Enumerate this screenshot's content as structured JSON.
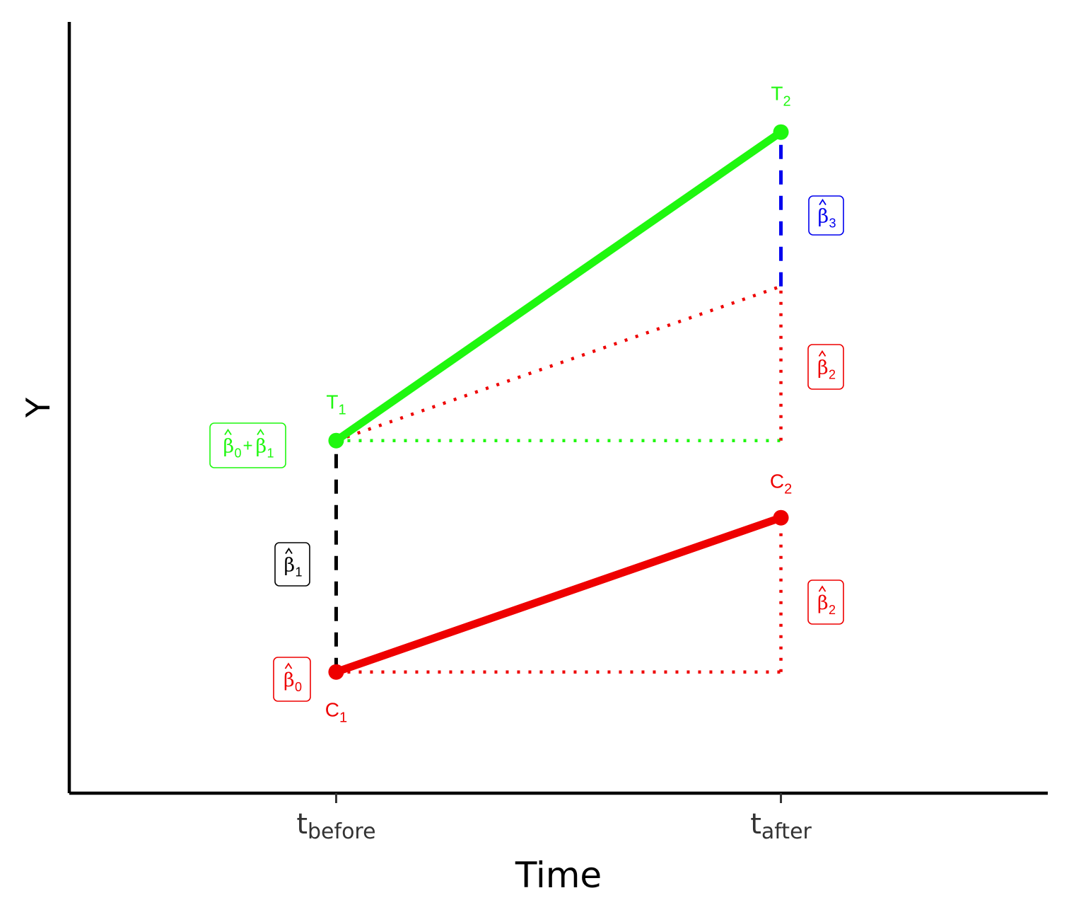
{
  "colors": {
    "treatment": "#1ff70f",
    "control": "#ee0000",
    "beta1": "#000000",
    "beta3": "#0000ee",
    "axis": "#000000"
  },
  "chart_data": {
    "type": "line",
    "xlabel": "Time",
    "ylabel": "Y",
    "x_ticks": [
      {
        "main": "t",
        "sub": "before"
      },
      {
        "main": "t",
        "sub": "after"
      }
    ],
    "x": [
      1,
      2
    ],
    "xlim": [
      0.4,
      2.6
    ],
    "ylim": [
      0.5,
      4.0
    ],
    "grid": false,
    "series": [
      {
        "key": "treatment",
        "values": [
          2.1,
          3.5
        ],
        "labels": [
          {
            "main": "T",
            "sub": "1"
          },
          {
            "main": "T",
            "sub": "2"
          }
        ]
      },
      {
        "key": "control",
        "values": [
          1.05,
          1.75
        ],
        "labels": [
          {
            "main": "C",
            "sub": "1"
          },
          {
            "main": "C",
            "sub": "2"
          }
        ]
      }
    ],
    "counterfactual": {
      "from": [
        1,
        2.1
      ],
      "to": [
        2,
        2.8
      ]
    },
    "annotations": [
      {
        "id": "b0b1",
        "terms": [
          {
            "sym": "β",
            "sub": "0"
          },
          {
            "op": "+"
          },
          {
            "sym": "β",
            "sub": "1"
          }
        ],
        "color_key": "treatment"
      },
      {
        "id": "b1",
        "terms": [
          {
            "sym": "β",
            "sub": "1"
          }
        ],
        "color_key": "beta1"
      },
      {
        "id": "b0",
        "terms": [
          {
            "sym": "β",
            "sub": "0"
          }
        ],
        "color_key": "control"
      },
      {
        "id": "b3",
        "terms": [
          {
            "sym": "β",
            "sub": "3"
          }
        ],
        "color_key": "beta3"
      },
      {
        "id": "b2_upper",
        "terms": [
          {
            "sym": "β",
            "sub": "2"
          }
        ],
        "color_key": "control"
      },
      {
        "id": "b2_lower",
        "terms": [
          {
            "sym": "β",
            "sub": "2"
          }
        ],
        "color_key": "control"
      }
    ]
  }
}
